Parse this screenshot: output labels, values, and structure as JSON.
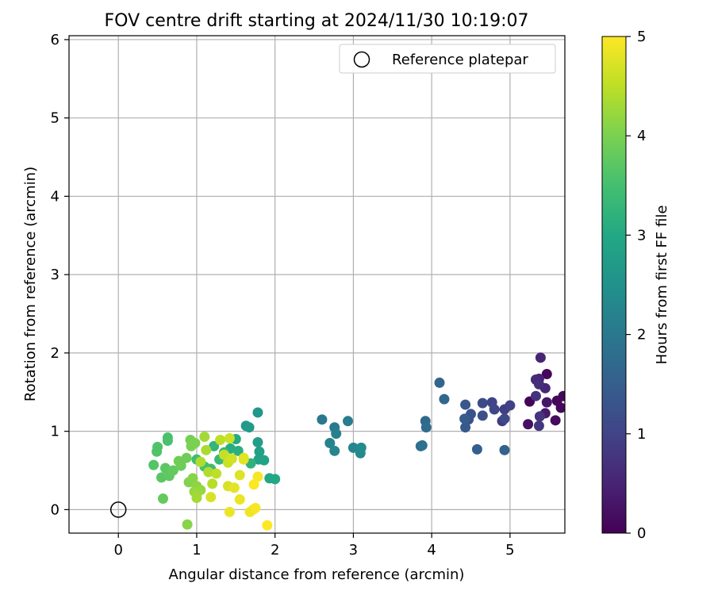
{
  "chart_data": {
    "type": "scatter",
    "title": "FOV centre drift starting at 2024/11/30 10:19:07",
    "xlabel": "Angular distance from reference (arcmin)",
    "ylabel": "Rotation from reference (arcmin)",
    "xlim": [
      -0.63,
      5.7
    ],
    "ylim": [
      -0.3,
      6.05
    ],
    "x_ticks": [
      "0",
      "1",
      "2",
      "3",
      "4",
      "5"
    ],
    "y_ticks": [
      "0",
      "1",
      "2",
      "3",
      "4",
      "5",
      "6"
    ],
    "grid": true,
    "legend": {
      "placement": "top-right",
      "entries": [
        "Reference platepar"
      ]
    },
    "reference_point": {
      "x": 0,
      "y": 0
    },
    "colorbar": {
      "label": "Hours from first FF file",
      "range": [
        0,
        5
      ],
      "ticks": [
        "0",
        "1",
        "2",
        "3",
        "4",
        "5"
      ],
      "colormap": "viridis"
    },
    "points": [
      {
        "x": 5.25,
        "y": 1.38,
        "t": 0.05
      },
      {
        "x": 5.47,
        "y": 1.73,
        "t": 0.08
      },
      {
        "x": 5.6,
        "y": 1.39,
        "t": 0.1
      },
      {
        "x": 5.65,
        "y": 1.3,
        "t": 0.12
      },
      {
        "x": 5.68,
        "y": 1.45,
        "t": 0.12
      },
      {
        "x": 5.58,
        "y": 1.14,
        "t": 0.15
      },
      {
        "x": 5.23,
        "y": 1.09,
        "t": 0.2
      },
      {
        "x": 5.47,
        "y": 1.37,
        "t": 0.3
      },
      {
        "x": 5.45,
        "y": 1.23,
        "t": 0.35
      },
      {
        "x": 5.37,
        "y": 1.67,
        "t": 0.45
      },
      {
        "x": 5.39,
        "y": 1.94,
        "t": 0.5
      },
      {
        "x": 5.45,
        "y": 1.55,
        "t": 0.55
      },
      {
        "x": 5.33,
        "y": 1.66,
        "t": 0.6
      },
      {
        "x": 5.37,
        "y": 1.6,
        "t": 0.65
      },
      {
        "x": 5.33,
        "y": 1.45,
        "t": 0.7
      },
      {
        "x": 5.38,
        "y": 1.19,
        "t": 0.75
      },
      {
        "x": 5.37,
        "y": 1.07,
        "t": 0.8
      },
      {
        "x": 4.9,
        "y": 1.13,
        "t": 0.85
      },
      {
        "x": 4.93,
        "y": 1.28,
        "t": 0.9
      },
      {
        "x": 5.0,
        "y": 1.33,
        "t": 0.95
      },
      {
        "x": 4.77,
        "y": 1.37,
        "t": 1.0
      },
      {
        "x": 4.8,
        "y": 1.28,
        "t": 1.05
      },
      {
        "x": 4.93,
        "y": 1.16,
        "t": 1.1
      },
      {
        "x": 4.65,
        "y": 1.36,
        "t": 1.15
      },
      {
        "x": 4.65,
        "y": 1.2,
        "t": 1.2
      },
      {
        "x": 4.47,
        "y": 1.15,
        "t": 1.25
      },
      {
        "x": 4.5,
        "y": 1.22,
        "t": 1.3
      },
      {
        "x": 4.43,
        "y": 1.34,
        "t": 1.35
      },
      {
        "x": 4.43,
        "y": 1.05,
        "t": 1.4
      },
      {
        "x": 4.42,
        "y": 1.16,
        "t": 1.45
      },
      {
        "x": 4.58,
        "y": 0.77,
        "t": 1.5
      },
      {
        "x": 4.93,
        "y": 0.76,
        "t": 1.55
      },
      {
        "x": 4.1,
        "y": 1.62,
        "t": 1.6
      },
      {
        "x": 4.16,
        "y": 1.41,
        "t": 1.65
      },
      {
        "x": 3.92,
        "y": 1.13,
        "t": 1.7
      },
      {
        "x": 3.93,
        "y": 1.05,
        "t": 1.75
      },
      {
        "x": 3.86,
        "y": 0.81,
        "t": 1.8
      },
      {
        "x": 3.88,
        "y": 0.82,
        "t": 1.85
      },
      {
        "x": 2.6,
        "y": 1.15,
        "t": 2.0
      },
      {
        "x": 2.76,
        "y": 1.05,
        "t": 2.05
      },
      {
        "x": 2.93,
        "y": 1.13,
        "t": 2.1
      },
      {
        "x": 2.78,
        "y": 0.97,
        "t": 2.15
      },
      {
        "x": 2.7,
        "y": 0.85,
        "t": 2.2
      },
      {
        "x": 2.76,
        "y": 0.75,
        "t": 2.25
      },
      {
        "x": 3.0,
        "y": 0.79,
        "t": 2.3
      },
      {
        "x": 3.09,
        "y": 0.72,
        "t": 2.35
      },
      {
        "x": 3.1,
        "y": 0.79,
        "t": 2.4
      },
      {
        "x": 1.78,
        "y": 1.24,
        "t": 2.6
      },
      {
        "x": 1.63,
        "y": 1.07,
        "t": 2.65
      },
      {
        "x": 1.67,
        "y": 1.05,
        "t": 2.7
      },
      {
        "x": 1.78,
        "y": 0.86,
        "t": 2.75
      },
      {
        "x": 1.8,
        "y": 0.74,
        "t": 2.8
      },
      {
        "x": 1.79,
        "y": 0.64,
        "t": 2.85
      },
      {
        "x": 1.86,
        "y": 0.63,
        "t": 2.9
      },
      {
        "x": 1.93,
        "y": 0.4,
        "t": 2.95
      },
      {
        "x": 2.0,
        "y": 0.39,
        "t": 3.0
      },
      {
        "x": 1.5,
        "y": 0.9,
        "t": 3.05
      },
      {
        "x": 1.43,
        "y": 0.78,
        "t": 3.1
      },
      {
        "x": 1.53,
        "y": 0.75,
        "t": 3.15
      },
      {
        "x": 1.69,
        "y": 0.59,
        "t": 3.2
      },
      {
        "x": 1.22,
        "y": 0.81,
        "t": 3.25
      },
      {
        "x": 1.35,
        "y": 0.73,
        "t": 3.3
      },
      {
        "x": 1.29,
        "y": 0.64,
        "t": 3.35
      },
      {
        "x": 1.18,
        "y": 0.52,
        "t": 3.4
      },
      {
        "x": 1.0,
        "y": 0.64,
        "t": 3.45
      },
      {
        "x": 1.1,
        "y": 0.55,
        "t": 3.5
      },
      {
        "x": 0.63,
        "y": 0.92,
        "t": 3.55
      },
      {
        "x": 0.63,
        "y": 0.88,
        "t": 3.55
      },
      {
        "x": 0.5,
        "y": 0.8,
        "t": 3.6
      },
      {
        "x": 0.49,
        "y": 0.74,
        "t": 3.6
      },
      {
        "x": 0.45,
        "y": 0.57,
        "t": 3.65
      },
      {
        "x": 0.6,
        "y": 0.53,
        "t": 3.7
      },
      {
        "x": 0.55,
        "y": 0.41,
        "t": 3.7
      },
      {
        "x": 0.65,
        "y": 0.43,
        "t": 3.75
      },
      {
        "x": 0.7,
        "y": 0.5,
        "t": 3.8
      },
      {
        "x": 0.57,
        "y": 0.14,
        "t": 3.8
      },
      {
        "x": 0.8,
        "y": 0.56,
        "t": 3.85
      },
      {
        "x": 0.77,
        "y": 0.62,
        "t": 3.9
      },
      {
        "x": 0.87,
        "y": 0.66,
        "t": 3.9
      },
      {
        "x": 0.92,
        "y": 0.89,
        "t": 3.95
      },
      {
        "x": 0.93,
        "y": 0.81,
        "t": 4.0
      },
      {
        "x": 0.98,
        "y": 0.85,
        "t": 4.0
      },
      {
        "x": 0.9,
        "y": 0.35,
        "t": 4.05
      },
      {
        "x": 0.95,
        "y": 0.4,
        "t": 4.1
      },
      {
        "x": 0.88,
        "y": -0.19,
        "t": 4.1
      },
      {
        "x": 1.0,
        "y": 0.3,
        "t": 4.15
      },
      {
        "x": 1.05,
        "y": 0.25,
        "t": 4.2
      },
      {
        "x": 0.97,
        "y": 0.23,
        "t": 4.2
      },
      {
        "x": 1.0,
        "y": 0.2,
        "t": 4.25
      },
      {
        "x": 1.0,
        "y": 0.15,
        "t": 4.3
      },
      {
        "x": 1.1,
        "y": 0.93,
        "t": 4.3
      },
      {
        "x": 1.12,
        "y": 0.76,
        "t": 4.35
      },
      {
        "x": 1.05,
        "y": 0.61,
        "t": 4.4
      },
      {
        "x": 1.15,
        "y": 0.48,
        "t": 4.4
      },
      {
        "x": 1.2,
        "y": 0.33,
        "t": 4.45
      },
      {
        "x": 1.25,
        "y": 0.46,
        "t": 4.5
      },
      {
        "x": 1.3,
        "y": 0.89,
        "t": 4.5
      },
      {
        "x": 1.35,
        "y": 0.7,
        "t": 4.55
      },
      {
        "x": 1.4,
        "y": 0.6,
        "t": 4.6
      },
      {
        "x": 1.42,
        "y": 0.91,
        "t": 4.6
      },
      {
        "x": 1.45,
        "y": 0.65,
        "t": 4.65
      },
      {
        "x": 1.4,
        "y": 0.3,
        "t": 4.7
      },
      {
        "x": 1.18,
        "y": 0.16,
        "t": 4.7
      },
      {
        "x": 1.55,
        "y": 0.44,
        "t": 4.75
      },
      {
        "x": 1.6,
        "y": 0.66,
        "t": 4.75
      },
      {
        "x": 1.6,
        "y": 0.64,
        "t": 4.8
      },
      {
        "x": 1.48,
        "y": 0.28,
        "t": 4.8
      },
      {
        "x": 1.55,
        "y": 0.13,
        "t": 4.85
      },
      {
        "x": 1.42,
        "y": -0.03,
        "t": 4.85
      },
      {
        "x": 1.68,
        "y": -0.03,
        "t": 4.9
      },
      {
        "x": 1.72,
        "y": 0.0,
        "t": 4.9
      },
      {
        "x": 1.75,
        "y": 0.02,
        "t": 4.95
      },
      {
        "x": 1.78,
        "y": 0.42,
        "t": 4.95
      },
      {
        "x": 1.73,
        "y": 0.32,
        "t": 5.0
      },
      {
        "x": 1.9,
        "y": -0.2,
        "t": 5.0
      }
    ]
  }
}
